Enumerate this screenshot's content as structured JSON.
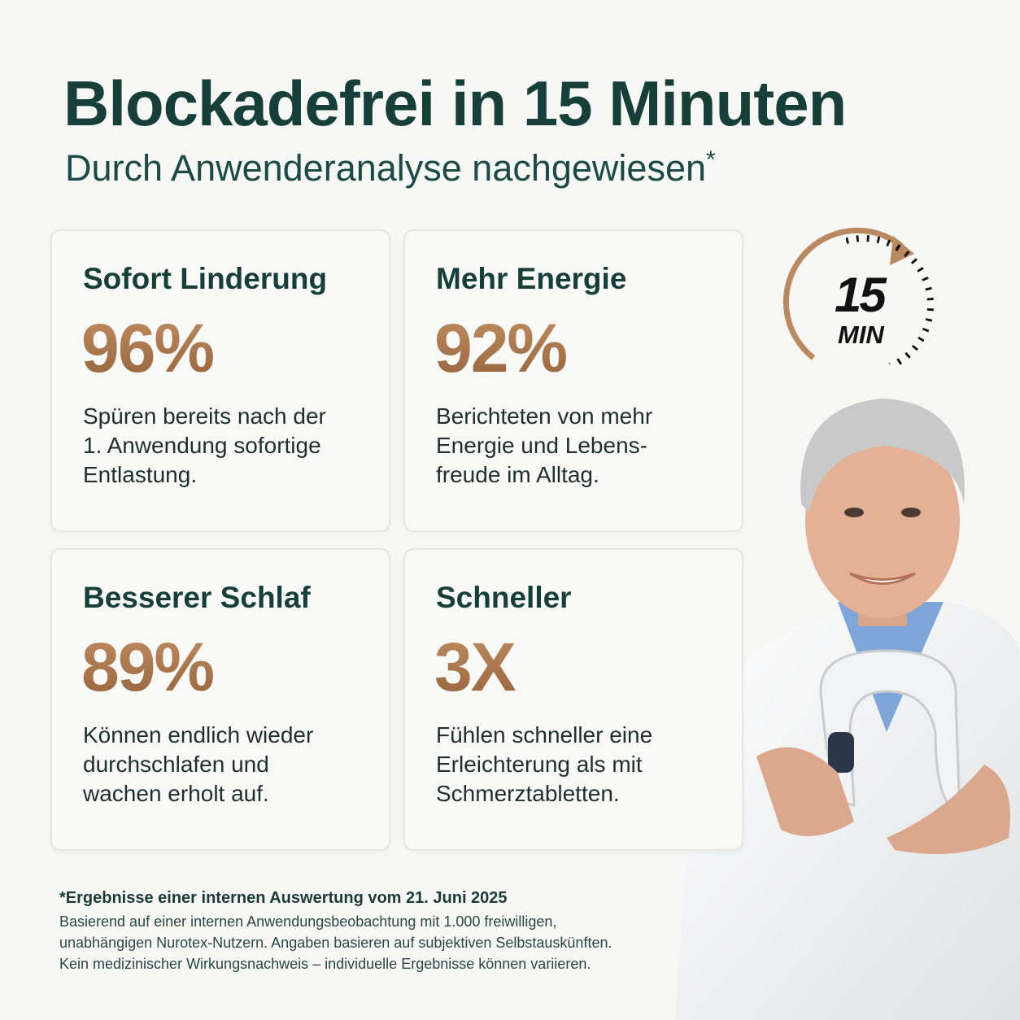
{
  "header": {
    "title": "Blockadefrei in 15 Minuten",
    "subtitle": "Durch Anwenderanalyse nachgewiesen",
    "subtitle_mark": "*"
  },
  "cards": [
    {
      "title": "Sofort Linderung",
      "stat": "96%",
      "lines": [
        "Spüren bereits nach der",
        "1. Anwendung sofortige",
        "Entlastung."
      ]
    },
    {
      "title": "Mehr Energie",
      "stat": "92%",
      "lines": [
        "Berichteten von mehr",
        "Energie und Lebens-",
        "freude im Alltag."
      ]
    },
    {
      "title": "Besserer Schlaf",
      "stat": "89%",
      "lines": [
        "Können endlich wieder",
        "durchschlafen und",
        "wachen erholt auf."
      ]
    },
    {
      "title": "Schneller",
      "stat": "3X",
      "lines": [
        "Fühlen schneller eine",
        "Erleichterung als mit",
        "Schmerztabletten."
      ]
    }
  ],
  "timer": {
    "number": "15",
    "unit": "MIN"
  },
  "footnote": {
    "heading": "*Ergebnisse einer internen Auswertung vom 21. Juni 2025",
    "lines": [
      "Basierend auf einer internen Anwendungsbeobachtung mit 1.000 freiwilligen,",
      "unabhängigen Nurotex-Nutzern. Angaben basieren auf subjektiven Selbstauskünften.",
      "Kein medizinischer Wirkungsnachweis – individuelle Ergebnisse können variieren."
    ]
  }
}
